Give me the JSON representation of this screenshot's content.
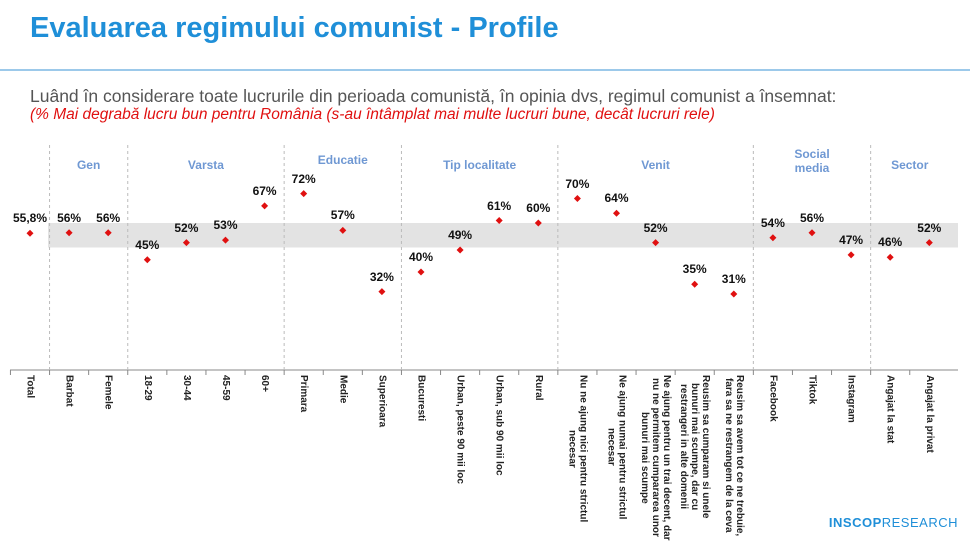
{
  "header": {
    "title": "Evaluarea regimului comunist - Profile",
    "question": "Luând în considerare toate lucrurile din perioada comunistă, în opinia dvs, regimul comunist a însemnat:",
    "subtitle": "(% Mai degrabă lucru bun pentru România (s-au întâmplat mai multe lucruri bune, decât lucruri rele)"
  },
  "logo": {
    "brand": "INSCOP",
    "suffix": "RESEARCH"
  },
  "colors": {
    "title": "#1f8fd8",
    "marker": "#e01010",
    "band": "#d9d9d9",
    "group_label": "#6f98d3"
  },
  "chart_data": {
    "type": "scatter",
    "ylim": [
      0,
      100
    ],
    "reference_band": [
      50,
      60
    ],
    "groups": [
      {
        "name": "",
        "start": 0,
        "end": 0
      },
      {
        "name": "Gen",
        "start": 1,
        "end": 2
      },
      {
        "name": "Varsta",
        "start": 3,
        "end": 6
      },
      {
        "name": "Educatie",
        "start": 7,
        "end": 9
      },
      {
        "name": "Tip localitate",
        "start": 10,
        "end": 13
      },
      {
        "name": "Venit",
        "start": 14,
        "end": 18
      },
      {
        "name": "Social\nmedia",
        "start": 19,
        "end": 21
      },
      {
        "name": "Sector",
        "start": 22,
        "end": 23
      }
    ],
    "categories": [
      "Total",
      "Barbat",
      "Femele",
      "18-29",
      "30-44",
      "45-59",
      "60+",
      "Primara",
      "Medie",
      "Superioara",
      "Bucuresti",
      "Urban, peste 90 mii loc",
      "Urban, sub 90 mii loc",
      "Rural",
      "Nu ne ajung nici pentru strictul\nnecesar",
      "Ne ajung numai pentru strictul\nnecesar",
      "Ne ajung pentru un trai decent, dar\nnu ne permitem cumpararea unor\nbunuri mai scumpe",
      "Reusim sa cumparam si unele\nbunuri mai scumpe, dar cu\nrestrangeri in alte domenii",
      "Reusim sa avem tot ce ne trebuie,\nfara sa ne restrangem de la ceva",
      "Facebook",
      "Tiktok",
      "Instagram",
      "Angajat la stat",
      "Angajat la privat"
    ],
    "values": [
      55.8,
      56,
      56,
      45,
      52,
      53,
      67,
      72,
      57,
      32,
      40,
      49,
      61,
      60,
      70,
      64,
      52,
      35,
      31,
      54,
      56,
      47,
      46,
      52
    ],
    "labels": [
      "55,8%",
      "56%",
      "56%",
      "45%",
      "52%",
      "53%",
      "67%",
      "72%",
      "57%",
      "32%",
      "40%",
      "49%",
      "61%",
      "60%",
      "70%",
      "64%",
      "52%",
      "35%",
      "31%",
      "54%",
      "56%",
      "47%",
      "46%",
      "52%"
    ]
  }
}
